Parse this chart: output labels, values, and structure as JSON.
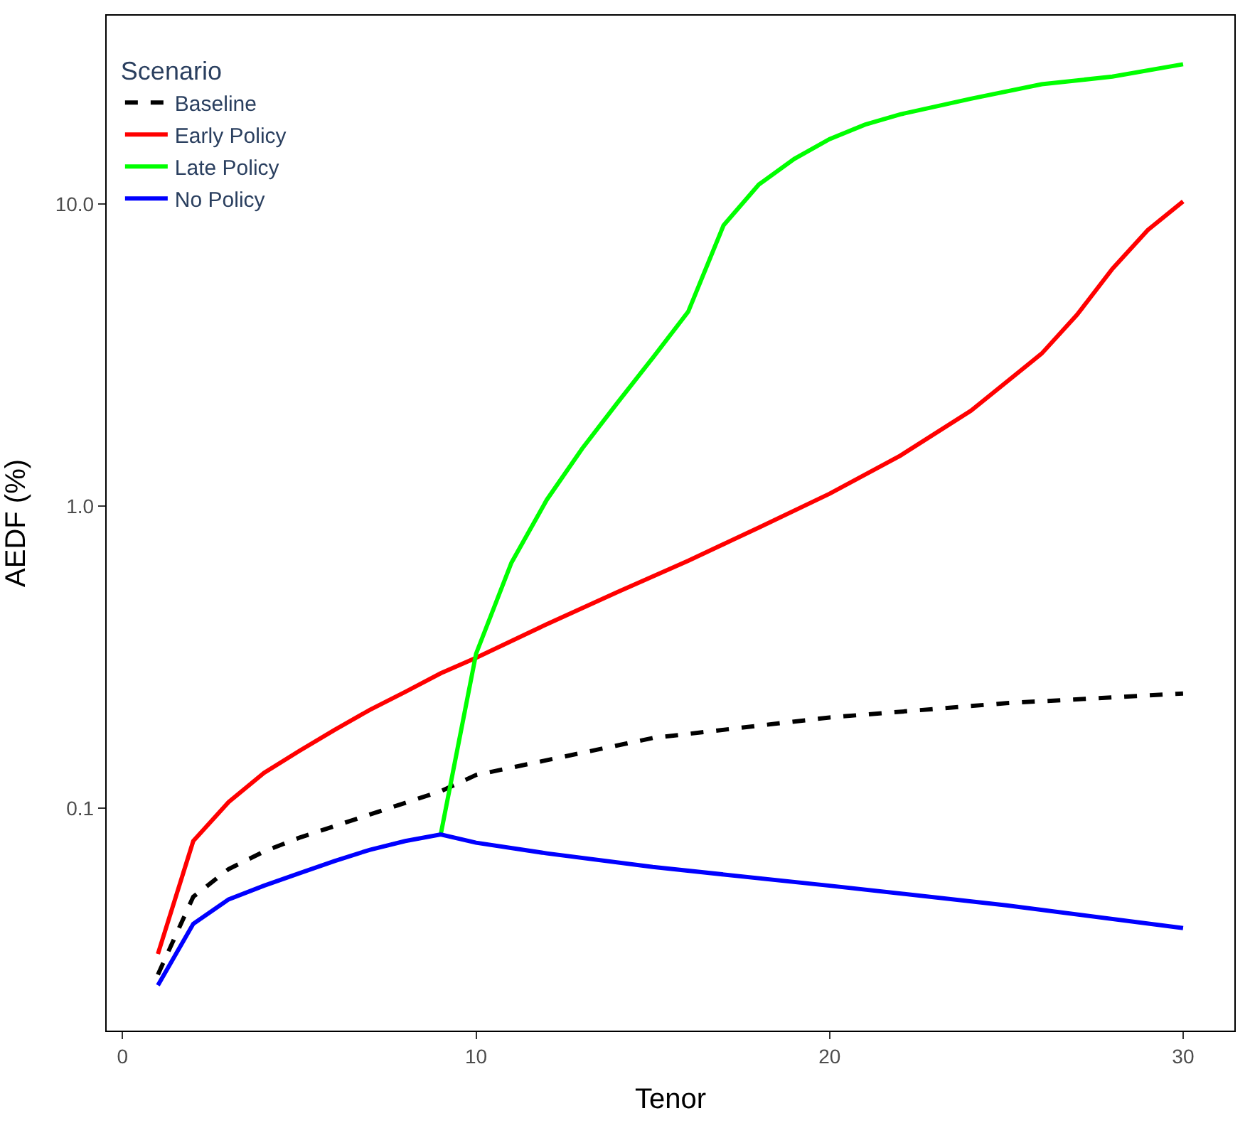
{
  "chart_data": {
    "type": "line",
    "xlabel": "Tenor",
    "ylabel": "AEDF (%)",
    "legend_title": "Scenario",
    "legend": "top left",
    "log": "y",
    "xlim": [
      -0.45,
      31.45
    ],
    "xticks": [
      0,
      10,
      20,
      30
    ],
    "ylim": [
      0.0184,
      42
    ],
    "yticks": [
      0.1,
      {
        "value": 1,
        "label": "1.0"
      },
      {
        "value": 10,
        "label": "10.0"
      }
    ],
    "series": [
      {
        "name": "Baseline",
        "color": "#000000",
        "line_style": "dashed",
        "x": [
          1,
          2,
          3,
          4,
          5,
          9,
          10,
          15,
          20,
          25,
          30
        ],
        "values": [
          0.0282,
          0.051,
          0.063,
          0.072,
          0.08,
          0.114,
          0.129,
          0.171,
          0.2,
          0.223,
          0.24
        ]
      },
      {
        "name": "Early Policy",
        "color": "#ff0000",
        "line_style": "solid",
        "x": [
          1,
          2,
          3,
          4,
          5,
          6,
          7,
          8,
          9,
          10,
          12,
          14,
          16,
          18,
          20,
          22,
          24,
          26,
          27,
          28,
          29,
          30
        ],
        "values": [
          0.033,
          0.078,
          0.105,
          0.131,
          0.155,
          0.182,
          0.212,
          0.243,
          0.28,
          0.315,
          0.407,
          0.52,
          0.66,
          0.85,
          1.1,
          1.47,
          2.07,
          3.2,
          4.3,
          6.1,
          8.2,
          10.2
        ]
      },
      {
        "name": "Late Policy",
        "color": "#00ff00",
        "line_style": "solid",
        "x": [
          9,
          10,
          11,
          12,
          13,
          14,
          15,
          16,
          17,
          18,
          19,
          20,
          21,
          22,
          24,
          26,
          28,
          30
        ],
        "values": [
          0.082,
          0.325,
          0.65,
          1.05,
          1.55,
          2.2,
          3.1,
          4.4,
          8.5,
          11.6,
          14.1,
          16.4,
          18.3,
          19.8,
          22.3,
          24.9,
          26.4,
          29
        ]
      },
      {
        "name": "No Policy",
        "color": "#0000ff",
        "line_style": "solid",
        "x": [
          1,
          2,
          3,
          4,
          5,
          6,
          7,
          8,
          9,
          10,
          12,
          15,
          20,
          25,
          30
        ],
        "values": [
          0.026,
          0.0415,
          0.05,
          0.0555,
          0.061,
          0.067,
          0.073,
          0.078,
          0.082,
          0.077,
          0.071,
          0.064,
          0.0555,
          0.0478,
          0.0402
        ]
      }
    ]
  }
}
